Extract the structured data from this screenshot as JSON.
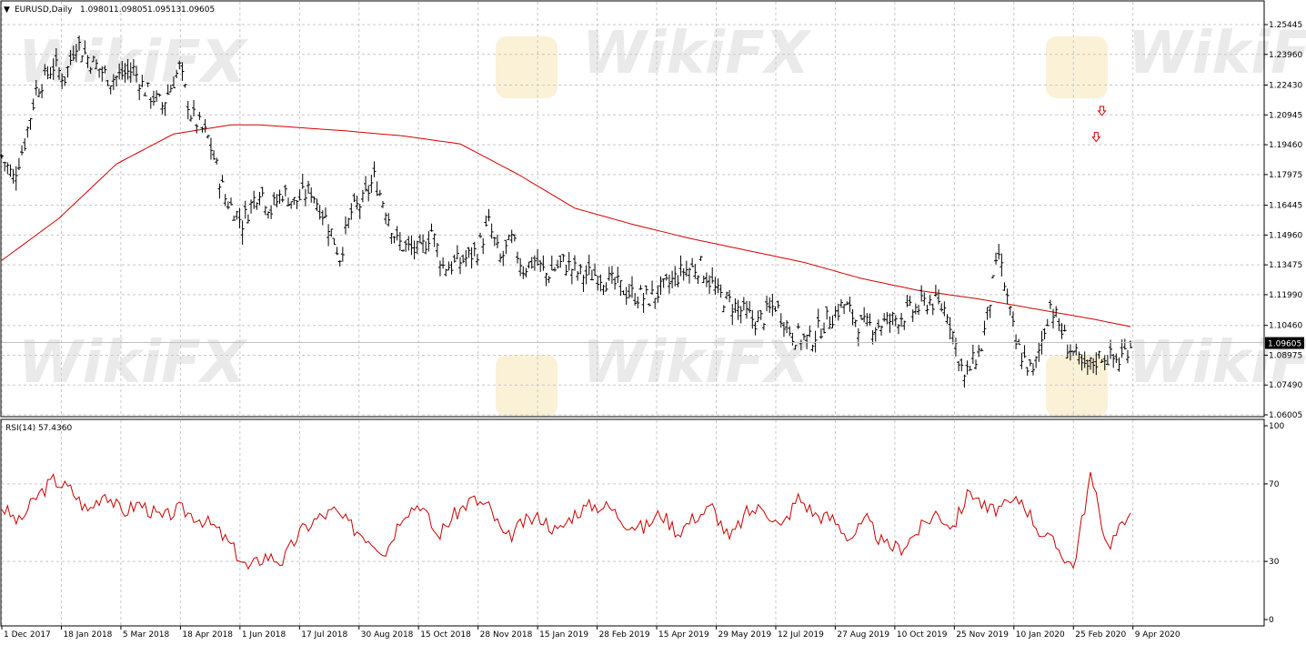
{
  "chart_data": [
    {
      "type": "candlestick",
      "title": "EURUSD,Daily",
      "ohlc": {
        "open": "1.09801",
        "high": "1.09805",
        "low": "1.09513",
        "close": "1.09605"
      },
      "current_price": "1.09605",
      "ylim": [
        1.06005,
        1.25445
      ],
      "ytick_labels": [
        "1.25445",
        "1.23960",
        "1.22430",
        "1.20945",
        "1.19460",
        "1.17975",
        "1.16445",
        "1.14960",
        "1.13475",
        "1.11990",
        "1.10460",
        "1.08975",
        "1.07490",
        "1.06005"
      ],
      "xtick_labels": [
        "1 Dec 2017",
        "18 Jan 2018",
        "5 Mar 2018",
        "18 Apr 2018",
        "1 Jun 2018",
        "17 Jul 2018",
        "30 Aug 2018",
        "15 Oct 2018",
        "28 Nov 2018",
        "15 Jan 2019",
        "28 Feb 2019",
        "15 Apr 2019",
        "29 May 2019",
        "12 Jul 2019",
        "27 Aug 2019",
        "10 Oct 2019",
        "25 Nov 2019",
        "10 Jan 2020",
        "25 Feb 2020",
        "9 Apr 2020"
      ],
      "close_path": {
        "x": [
          0,
          2,
          4,
          6,
          9,
          11,
          13,
          15,
          19,
          23,
          25,
          28,
          31,
          33,
          36,
          39,
          42,
          45,
          47,
          49,
          51,
          54,
          57,
          59,
          61,
          63,
          65,
          67,
          69,
          71,
          73,
          75,
          77,
          79,
          81,
          83,
          85,
          87,
          89,
          91,
          93,
          95,
          98,
          101,
          104,
          107,
          110,
          113,
          116,
          119,
          122,
          125,
          129,
          132,
          135,
          138,
          141,
          144,
          147,
          150,
          153,
          156,
          159,
          162,
          165,
          168,
          171,
          174,
          177,
          180,
          183,
          186,
          189,
          192,
          195,
          197
        ],
        "y": [
          1.189,
          1.178,
          1.196,
          1.222,
          1.234,
          1.228,
          1.246,
          1.238,
          1.227,
          1.232,
          1.222,
          1.214,
          1.233,
          1.21,
          1.198,
          1.168,
          1.156,
          1.173,
          1.162,
          1.171,
          1.166,
          1.172,
          1.155,
          1.139,
          1.161,
          1.166,
          1.178,
          1.163,
          1.146,
          1.143,
          1.141,
          1.152,
          1.134,
          1.135,
          1.138,
          1.142,
          1.155,
          1.137,
          1.147,
          1.133,
          1.137,
          1.13,
          1.136,
          1.13,
          1.13,
          1.125,
          1.12,
          1.118,
          1.124,
          1.132,
          1.134,
          1.12,
          1.112,
          1.106,
          1.115,
          1.1,
          1.097,
          1.107,
          1.115,
          1.104,
          1.105,
          1.108,
          1.112,
          1.117,
          1.112,
          1.078,
          1.094,
          1.14,
          1.095,
          1.08,
          1.115,
          1.095,
          1.082,
          1.09,
          1.087,
          1.096
        ]
      },
      "moving_average": {
        "color": "#d40000",
        "x": [
          0,
          10,
          20,
          30,
          40,
          45,
          50,
          60,
          70,
          80,
          90,
          100,
          110,
          120,
          130,
          140,
          150,
          160,
          170,
          180,
          190,
          197
        ],
        "y": [
          1.137,
          1.158,
          1.185,
          1.2,
          1.2045,
          1.2045,
          1.2035,
          1.2015,
          1.199,
          1.195,
          1.18,
          1.163,
          1.155,
          1.148,
          1.142,
          1.136,
          1.128,
          1.122,
          1.118,
          1.113,
          1.108,
          1.104
        ]
      },
      "arrows": [
        {
          "x": 192,
          "y": 1.211,
          "color": "#e00000"
        },
        {
          "x": 191,
          "y": 1.198,
          "color": "#e00000"
        }
      ],
      "bar_color": "#000000"
    },
    {
      "type": "line",
      "title": "RSI(14) 57.4360",
      "ylim": [
        0,
        100
      ],
      "ytick_labels": [
        "100",
        "70",
        "30",
        "0"
      ],
      "series": [
        {
          "color": "#cc0000",
          "x": [
            0,
            3,
            6,
            9,
            12,
            15,
            18,
            21,
            24,
            28,
            31,
            34,
            37,
            40,
            43,
            46,
            49,
            52,
            55,
            58,
            61,
            64,
            67,
            70,
            73,
            76,
            79,
            82,
            85,
            88,
            91,
            94,
            97,
            100,
            103,
            106,
            109,
            112,
            115,
            118,
            121,
            124,
            127,
            130,
            133,
            136,
            139,
            142,
            145,
            148,
            151,
            154,
            157,
            160,
            163,
            166,
            169,
            172,
            175,
            178,
            181,
            184,
            187,
            190,
            193,
            196,
            197
          ],
          "y": [
            58,
            50,
            63,
            72,
            67,
            56,
            66,
            55,
            60,
            52,
            57,
            53,
            48,
            38,
            26,
            33,
            30,
            45,
            52,
            56,
            48,
            42,
            35,
            55,
            60,
            43,
            54,
            62,
            58,
            41,
            50,
            53,
            45,
            55,
            59,
            58,
            50,
            47,
            55,
            45,
            53,
            58,
            41,
            55,
            58,
            47,
            63,
            54,
            52,
            42,
            51,
            38,
            37,
            46,
            55,
            48,
            67,
            56,
            58,
            62,
            46,
            38,
            27,
            74,
            38,
            50,
            55
          ]
        }
      ]
    }
  ]
}
